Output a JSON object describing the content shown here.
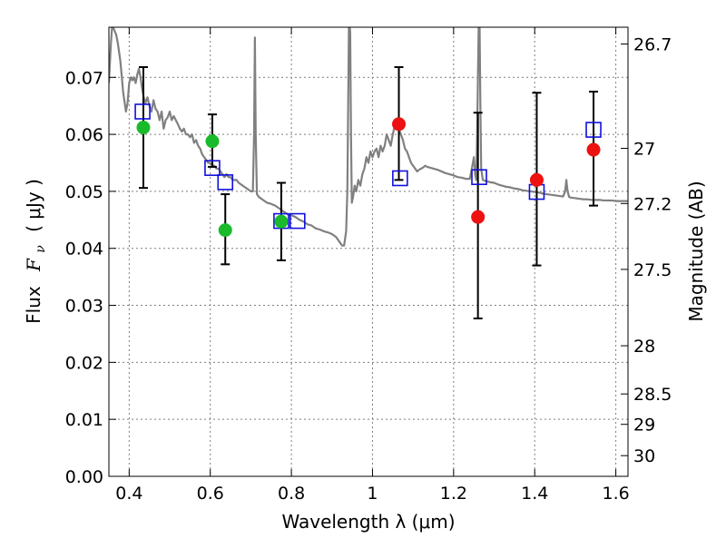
{
  "chart_data": {
    "type": "scatter",
    "xlabel": "Wavelength  λ (μm)",
    "ylabel": "Flux  F_ν  ( μJy )",
    "ylabel_prefix": "Flux",
    "ylabel_var": "F",
    "ylabel_sub": "ν",
    "ylabel_unit": "( μJy )",
    "y2label": "Magnitude (AB)",
    "xlim": [
      0.35,
      1.63
    ],
    "ylim": [
      0.0,
      0.0788
    ],
    "grid": true,
    "x_ticks": [
      0.4,
      0.6,
      0.8,
      1.0,
      1.2,
      1.4,
      1.6
    ],
    "x_tick_labels": [
      "0.4",
      "0.6",
      "0.8",
      "1",
      "1.2",
      "1.4",
      "1.6"
    ],
    "y_ticks": [
      0.0,
      0.01,
      0.02,
      0.03,
      0.04,
      0.05,
      0.06,
      0.07
    ],
    "y_tick_labels": [
      "0.00",
      "0.01",
      "0.02",
      "0.03",
      "0.04",
      "0.05",
      "0.06",
      "0.07"
    ],
    "mag_ticks": [
      26.7,
      27,
      27.2,
      27.5,
      28,
      28.5,
      29,
      30
    ],
    "mag_tick_labels": [
      "26.7",
      "27",
      "27.2",
      "27.5",
      "28",
      "28.5",
      "29",
      "30"
    ],
    "colors": {
      "model": "#808080",
      "green": "#1aba2a",
      "red": "#ee1111",
      "square": "#1010dd",
      "errorbar": "#000000",
      "grid": "#7f7f7f"
    },
    "series": [
      {
        "type": "line",
        "points": [
          [
            0.35,
            0.069
          ],
          [
            0.355,
            0.076
          ],
          [
            0.358,
            0.079
          ],
          [
            0.362,
            0.0785
          ],
          [
            0.368,
            0.0775
          ],
          [
            0.372,
            0.076
          ],
          [
            0.378,
            0.073
          ],
          [
            0.382,
            0.07
          ],
          [
            0.385,
            0.0675
          ],
          [
            0.388,
            0.066
          ],
          [
            0.392,
            0.064
          ],
          [
            0.396,
            0.0655
          ],
          [
            0.4,
            0.069
          ],
          [
            0.404,
            0.07
          ],
          [
            0.408,
            0.0695
          ],
          [
            0.412,
            0.07
          ],
          [
            0.416,
            0.069
          ],
          [
            0.42,
            0.0705
          ],
          [
            0.424,
            0.0715
          ],
          [
            0.428,
            0.07
          ],
          [
            0.432,
            0.068
          ],
          [
            0.436,
            0.0665
          ],
          [
            0.44,
            0.0655
          ],
          [
            0.445,
            0.0665
          ],
          [
            0.45,
            0.065
          ],
          [
            0.455,
            0.064
          ],
          [
            0.46,
            0.066
          ],
          [
            0.465,
            0.0645
          ],
          [
            0.47,
            0.064
          ],
          [
            0.475,
            0.0625
          ],
          [
            0.48,
            0.064
          ],
          [
            0.485,
            0.061
          ],
          [
            0.49,
            0.0625
          ],
          [
            0.495,
            0.063
          ],
          [
            0.5,
            0.064
          ],
          [
            0.505,
            0.0625
          ],
          [
            0.51,
            0.0632
          ],
          [
            0.515,
            0.0625
          ],
          [
            0.52,
            0.0618
          ],
          [
            0.525,
            0.061
          ],
          [
            0.53,
            0.0605
          ],
          [
            0.535,
            0.061
          ],
          [
            0.54,
            0.06
          ],
          [
            0.545,
            0.06
          ],
          [
            0.55,
            0.0595
          ],
          [
            0.555,
            0.06
          ],
          [
            0.56,
            0.0585
          ],
          [
            0.565,
            0.059
          ],
          [
            0.57,
            0.058
          ],
          [
            0.575,
            0.0575
          ],
          [
            0.58,
            0.0565
          ],
          [
            0.585,
            0.056
          ],
          [
            0.59,
            0.0555
          ],
          [
            0.595,
            0.055
          ],
          [
            0.6,
            0.055
          ],
          [
            0.605,
            0.0545
          ],
          [
            0.61,
            0.0545
          ],
          [
            0.615,
            0.054
          ],
          [
            0.62,
            0.054
          ],
          [
            0.625,
            0.0535
          ],
          [
            0.63,
            0.053
          ],
          [
            0.635,
            0.0525
          ],
          [
            0.64,
            0.053
          ],
          [
            0.645,
            0.0525
          ],
          [
            0.65,
            0.0525
          ],
          [
            0.655,
            0.052
          ],
          [
            0.66,
            0.052
          ],
          [
            0.665,
            0.052
          ],
          [
            0.67,
            0.0515
          ],
          [
            0.68,
            0.051
          ],
          [
            0.69,
            0.0505
          ],
          [
            0.7,
            0.05
          ],
          [
            0.705,
            0.05
          ],
          [
            0.708,
            0.06
          ],
          [
            0.71,
            0.077
          ],
          [
            0.712,
            0.06
          ],
          [
            0.715,
            0.0495
          ],
          [
            0.72,
            0.049
          ],
          [
            0.73,
            0.0485
          ],
          [
            0.74,
            0.048
          ],
          [
            0.75,
            0.0478
          ],
          [
            0.76,
            0.0475
          ],
          [
            0.77,
            0.047
          ],
          [
            0.78,
            0.0465
          ],
          [
            0.79,
            0.046
          ],
          [
            0.8,
            0.0458
          ],
          [
            0.81,
            0.0455
          ],
          [
            0.82,
            0.045
          ],
          [
            0.83,
            0.0447
          ],
          [
            0.84,
            0.0442
          ],
          [
            0.85,
            0.044
          ],
          [
            0.86,
            0.0435
          ],
          [
            0.87,
            0.0433
          ],
          [
            0.88,
            0.043
          ],
          [
            0.89,
            0.0428
          ],
          [
            0.9,
            0.0425
          ],
          [
            0.91,
            0.042
          ],
          [
            0.92,
            0.041
          ],
          [
            0.925,
            0.0405
          ],
          [
            0.93,
            0.0405
          ],
          [
            0.935,
            0.043
          ],
          [
            0.938,
            0.05
          ],
          [
            0.94,
            0.065
          ],
          [
            0.942,
            0.08
          ],
          [
            0.945,
            0.078
          ],
          [
            0.947,
            0.06
          ],
          [
            0.949,
            0.048
          ],
          [
            0.952,
            0.049
          ],
          [
            0.956,
            0.051
          ],
          [
            0.96,
            0.05
          ],
          [
            0.965,
            0.052
          ],
          [
            0.97,
            0.051
          ],
          [
            0.975,
            0.053
          ],
          [
            0.98,
            0.054
          ],
          [
            0.985,
            0.056
          ],
          [
            0.99,
            0.055
          ],
          [
            0.995,
            0.057
          ],
          [
            1.0,
            0.056
          ],
          [
            1.005,
            0.057
          ],
          [
            1.01,
            0.0575
          ],
          [
            1.015,
            0.056
          ],
          [
            1.02,
            0.058
          ],
          [
            1.025,
            0.057
          ],
          [
            1.03,
            0.058
          ],
          [
            1.035,
            0.06
          ],
          [
            1.04,
            0.059
          ],
          [
            1.045,
            0.058
          ],
          [
            1.05,
            0.06
          ],
          [
            1.055,
            0.0615
          ],
          [
            1.06,
            0.0618
          ],
          [
            1.065,
            0.061
          ],
          [
            1.07,
            0.06
          ],
          [
            1.075,
            0.059
          ],
          [
            1.08,
            0.0575
          ],
          [
            1.085,
            0.057
          ],
          [
            1.09,
            0.056
          ],
          [
            1.095,
            0.055
          ],
          [
            1.1,
            0.0545
          ],
          [
            1.105,
            0.054
          ],
          [
            1.11,
            0.0535
          ],
          [
            1.115,
            0.0538
          ],
          [
            1.12,
            0.054
          ],
          [
            1.125,
            0.0542
          ],
          [
            1.13,
            0.0545
          ],
          [
            1.135,
            0.0543
          ],
          [
            1.14,
            0.0542
          ],
          [
            1.15,
            0.054
          ],
          [
            1.16,
            0.0538
          ],
          [
            1.17,
            0.0535
          ],
          [
            1.18,
            0.0532
          ],
          [
            1.19,
            0.053
          ],
          [
            1.2,
            0.0528
          ],
          [
            1.21,
            0.0525
          ],
          [
            1.22,
            0.0524
          ],
          [
            1.23,
            0.0522
          ],
          [
            1.24,
            0.0522
          ],
          [
            1.245,
            0.054
          ],
          [
            1.25,
            0.056
          ],
          [
            1.253,
            0.053
          ],
          [
            1.256,
            0.052
          ],
          [
            1.258,
            0.06
          ],
          [
            1.26,
            0.07
          ],
          [
            1.262,
            0.08
          ],
          [
            1.264,
            0.08
          ],
          [
            1.266,
            0.065
          ],
          [
            1.268,
            0.054
          ],
          [
            1.272,
            0.052
          ],
          [
            1.28,
            0.0518
          ],
          [
            1.29,
            0.0516
          ],
          [
            1.3,
            0.0515
          ],
          [
            1.31,
            0.0512
          ],
          [
            1.32,
            0.051
          ],
          [
            1.33,
            0.0508
          ],
          [
            1.34,
            0.0507
          ],
          [
            1.35,
            0.0505
          ],
          [
            1.36,
            0.0504
          ],
          [
            1.37,
            0.0502
          ],
          [
            1.38,
            0.0501
          ],
          [
            1.39,
            0.05
          ],
          [
            1.4,
            0.0499
          ],
          [
            1.41,
            0.0498
          ],
          [
            1.42,
            0.0496
          ],
          [
            1.43,
            0.0495
          ],
          [
            1.44,
            0.0494
          ],
          [
            1.45,
            0.0493
          ],
          [
            1.46,
            0.0492
          ],
          [
            1.47,
            0.0491
          ],
          [
            1.475,
            0.05
          ],
          [
            1.478,
            0.052
          ],
          [
            1.481,
            0.05
          ],
          [
            1.485,
            0.049
          ],
          [
            1.49,
            0.0489
          ],
          [
            1.5,
            0.0488
          ],
          [
            1.51,
            0.0487
          ],
          [
            1.52,
            0.0486
          ],
          [
            1.53,
            0.0486
          ],
          [
            1.54,
            0.0485
          ],
          [
            1.55,
            0.0485
          ],
          [
            1.56,
            0.0485
          ],
          [
            1.57,
            0.0484
          ],
          [
            1.58,
            0.0484
          ],
          [
            1.59,
            0.0484
          ],
          [
            1.6,
            0.0483
          ],
          [
            1.61,
            0.0483
          ],
          [
            1.62,
            0.0483
          ],
          [
            1.63,
            0.0483
          ]
        ]
      },
      {
        "type": "scatter",
        "marker": "circle",
        "points": [
          [
            0.435,
            0.0612
          ],
          [
            0.605,
            0.0588
          ],
          [
            0.637,
            0.0432
          ],
          [
            0.775,
            0.0447
          ]
        ]
      },
      {
        "type": "scatter",
        "marker": "circle",
        "points": [
          [
            1.065,
            0.0618
          ],
          [
            1.26,
            0.0455
          ],
          [
            1.405,
            0.052
          ],
          [
            1.545,
            0.0573
          ]
        ]
      },
      {
        "type": "scatter",
        "marker": "open-square",
        "points": [
          [
            0.433,
            0.064
          ],
          [
            0.605,
            0.0541
          ],
          [
            0.637,
            0.0516
          ],
          [
            0.775,
            0.0448
          ],
          [
            0.815,
            0.0448
          ],
          [
            1.068,
            0.0523
          ],
          [
            1.263,
            0.0525
          ],
          [
            1.405,
            0.0499
          ],
          [
            1.545,
            0.0608
          ]
        ]
      },
      {
        "type": "errorbar",
        "points": [
          {
            "x": 0.435,
            "y": 0.0612,
            "low": 0.0506,
            "high": 0.0718
          },
          {
            "x": 0.605,
            "y": 0.0588,
            "low": 0.0543,
            "high": 0.0635
          },
          {
            "x": 0.637,
            "y": 0.0432,
            "low": 0.0372,
            "high": 0.0495
          },
          {
            "x": 0.775,
            "y": 0.0447,
            "low": 0.0379,
            "high": 0.0515
          },
          {
            "x": 1.065,
            "y": 0.0618,
            "low": 0.052,
            "high": 0.0718
          },
          {
            "x": 1.26,
            "y": 0.0455,
            "low": 0.0277,
            "high": 0.0638
          },
          {
            "x": 1.405,
            "y": 0.052,
            "low": 0.037,
            "high": 0.0673
          },
          {
            "x": 1.545,
            "y": 0.0573,
            "low": 0.0475,
            "high": 0.0675
          }
        ]
      }
    ]
  }
}
